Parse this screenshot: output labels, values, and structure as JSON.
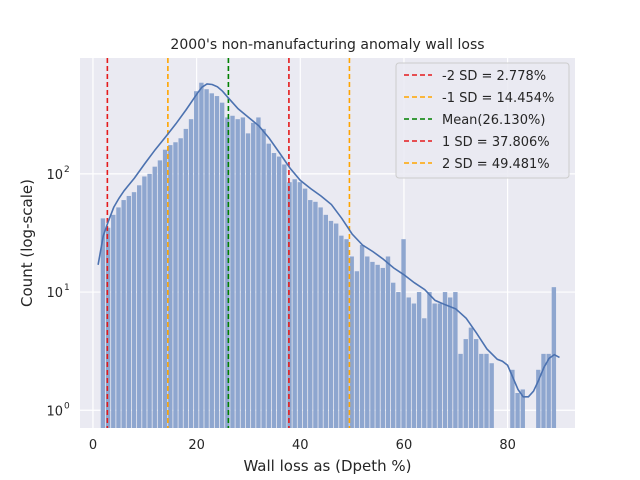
{
  "chart_data": {
    "type": "bar",
    "title": "2000's non-manufacturing anomaly wall loss",
    "xlabel": "Wall loss as (Dpeth %)",
    "ylabel": "Count (log-scale)",
    "x_ticks": [
      0,
      20,
      40,
      60,
      80
    ],
    "y_ticks": [
      {
        "value": 1,
        "label": "10",
        "exp": "0"
      },
      {
        "value": 10,
        "label": "10",
        "exp": "1"
      },
      {
        "value": 100,
        "label": "10",
        "exp": "2"
      }
    ],
    "xlim": [
      -2.5,
      93
    ],
    "ylim_log10": [
      -0.15,
      2.98
    ],
    "y_scale": "log",
    "grid": true,
    "legend_position": "top-right",
    "bar_color": "#8ea6cf",
    "kde_color": "#4c72b0",
    "bin_width": 1,
    "bins": [
      [
        2,
        42
      ],
      [
        3,
        35
      ],
      [
        4,
        45
      ],
      [
        5,
        52
      ],
      [
        6,
        60
      ],
      [
        7,
        65
      ],
      [
        8,
        70
      ],
      [
        9,
        80
      ],
      [
        10,
        95
      ],
      [
        11,
        100
      ],
      [
        12,
        115
      ],
      [
        13,
        130
      ],
      [
        14,
        160
      ],
      [
        15,
        175
      ],
      [
        16,
        185
      ],
      [
        17,
        200
      ],
      [
        18,
        240
      ],
      [
        19,
        290
      ],
      [
        20,
        500
      ],
      [
        21,
        590
      ],
      [
        22,
        520
      ],
      [
        23,
        480
      ],
      [
        24,
        455
      ],
      [
        25,
        400
      ],
      [
        26,
        300
      ],
      [
        27,
        310
      ],
      [
        28,
        290
      ],
      [
        29,
        300
      ],
      [
        30,
        220
      ],
      [
        31,
        270
      ],
      [
        32,
        300
      ],
      [
        33,
        240
      ],
      [
        34,
        180
      ],
      [
        35,
        150
      ],
      [
        36,
        140
      ],
      [
        37,
        120
      ],
      [
        38,
        85
      ],
      [
        39,
        90
      ],
      [
        40,
        85
      ],
      [
        41,
        75
      ],
      [
        42,
        60
      ],
      [
        43,
        58
      ],
      [
        44,
        52
      ],
      [
        45,
        45
      ],
      [
        46,
        40
      ],
      [
        47,
        38
      ],
      [
        48,
        30
      ],
      [
        49,
        28
      ],
      [
        50,
        20
      ],
      [
        51,
        15
      ],
      [
        52,
        25
      ],
      [
        53,
        20
      ],
      [
        54,
        18
      ],
      [
        55,
        17
      ],
      [
        56,
        16
      ],
      [
        57,
        20
      ],
      [
        58,
        12
      ],
      [
        59,
        10
      ],
      [
        60,
        28
      ],
      [
        61,
        9
      ],
      [
        62,
        8
      ],
      [
        63,
        10
      ],
      [
        64,
        6
      ],
      [
        65,
        10
      ],
      [
        66,
        8
      ],
      [
        67,
        8
      ],
      [
        68,
        10
      ],
      [
        69,
        9
      ],
      [
        70,
        10
      ],
      [
        71,
        3
      ],
      [
        72,
        4
      ],
      [
        73,
        5
      ],
      [
        74,
        4
      ],
      [
        75,
        3
      ],
      [
        76,
        3
      ],
      [
        77,
        2.5
      ],
      [
        81,
        2.2
      ],
      [
        82,
        1.4
      ],
      [
        83,
        1.5
      ],
      [
        86,
        2.2
      ],
      [
        87,
        3
      ],
      [
        88,
        3
      ],
      [
        89,
        11
      ]
    ],
    "kde": [
      [
        1,
        17
      ],
      [
        2,
        30
      ],
      [
        3,
        40
      ],
      [
        4,
        52
      ],
      [
        5,
        62
      ],
      [
        6,
        72
      ],
      [
        8,
        92
      ],
      [
        10,
        122
      ],
      [
        12,
        160
      ],
      [
        14,
        205
      ],
      [
        16,
        265
      ],
      [
        18,
        350
      ],
      [
        20,
        470
      ],
      [
        21,
        540
      ],
      [
        22,
        575
      ],
      [
        23,
        570
      ],
      [
        24,
        545
      ],
      [
        25,
        500
      ],
      [
        26,
        445
      ],
      [
        28,
        355
      ],
      [
        30,
        300
      ],
      [
        32,
        255
      ],
      [
        34,
        200
      ],
      [
        36,
        150
      ],
      [
        38,
        112
      ],
      [
        40,
        88
      ],
      [
        42,
        75
      ],
      [
        44,
        65
      ],
      [
        46,
        55
      ],
      [
        48,
        42
      ],
      [
        50,
        31
      ],
      [
        52,
        25
      ],
      [
        54,
        22
      ],
      [
        56,
        19
      ],
      [
        58,
        16
      ],
      [
        60,
        14
      ],
      [
        62,
        12
      ],
      [
        64,
        10.5
      ],
      [
        66,
        8.5
      ],
      [
        68,
        7.8
      ],
      [
        70,
        7.2
      ],
      [
        72,
        6
      ],
      [
        74,
        4.5
      ],
      [
        76,
        3.3
      ],
      [
        78,
        2.7
      ],
      [
        79,
        2.6
      ],
      [
        80,
        2.4
      ],
      [
        81,
        1.9
      ],
      [
        82,
        1.5
      ],
      [
        83,
        1.3
      ],
      [
        84,
        1.3
      ],
      [
        85,
        1.45
      ],
      [
        86,
        1.8
      ],
      [
        87,
        2.3
      ],
      [
        88,
        2.75
      ],
      [
        89,
        2.95
      ],
      [
        90,
        2.8
      ]
    ],
    "vlines": [
      {
        "x": 2.778,
        "color": "#e41a1c",
        "label": "-2 SD = 2.778%"
      },
      {
        "x": 14.454,
        "color": "#ffa500",
        "label": "-1 SD = 14.454%"
      },
      {
        "x": 26.13,
        "color": "#008000",
        "label": "Mean(26.130%)"
      },
      {
        "x": 37.806,
        "color": "#e41a1c",
        "label": "1 SD = 37.806%"
      },
      {
        "x": 49.481,
        "color": "#ffa500",
        "label": "2 SD = 49.481%"
      }
    ]
  }
}
